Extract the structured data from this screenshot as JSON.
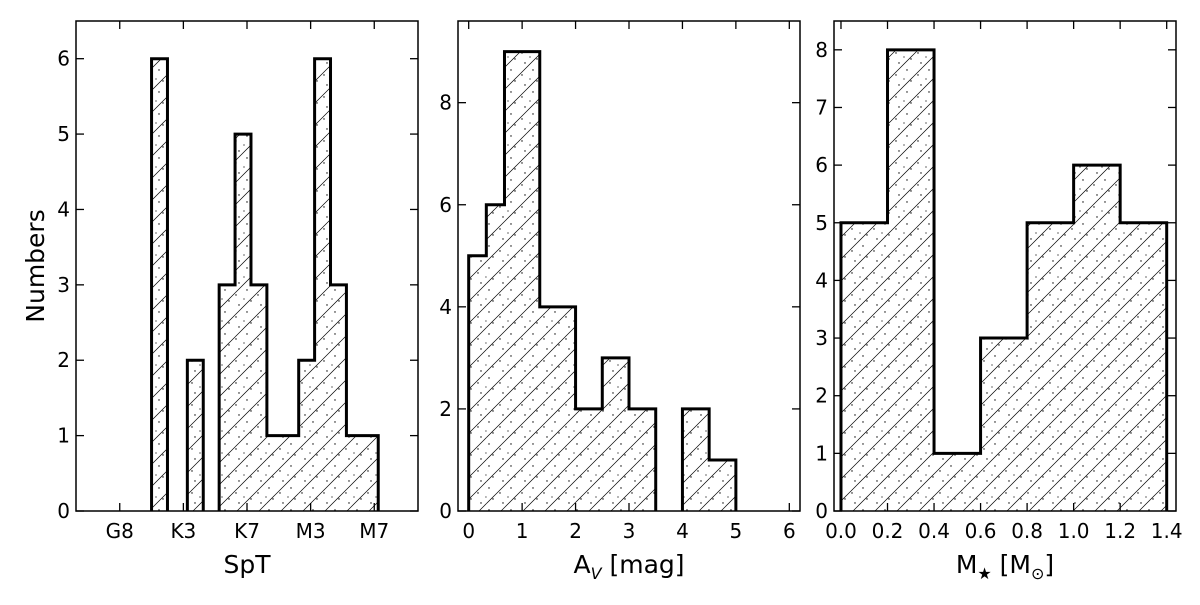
{
  "chart_data": [
    {
      "type": "bar",
      "subtype": "step-histogram",
      "xlabel": "SpT",
      "ylabel": "Numbers",
      "ylim": [
        0,
        6.5
      ],
      "y_ticks": [
        0,
        1,
        2,
        3,
        4,
        5,
        6
      ],
      "x_tick_labels": [
        "G8",
        "K3",
        "K7",
        "M3",
        "M7"
      ],
      "x_tick_positions": [
        0,
        4,
        8,
        12,
        16
      ],
      "xlim": [
        -2.75,
        18.75
      ],
      "bins": [
        {
          "x0": 2.0,
          "x1": 3.0,
          "value": 6
        },
        {
          "x0": 4.25,
          "x1": 5.25,
          "value": 2
        },
        {
          "x0": 6.25,
          "x1": 7.25,
          "value": 3
        },
        {
          "x0": 7.25,
          "x1": 8.25,
          "value": 5
        },
        {
          "x0": 8.25,
          "x1": 9.25,
          "value": 3
        },
        {
          "x0": 9.25,
          "x1": 11.25,
          "value": 1
        },
        {
          "x0": 11.25,
          "x1": 12.25,
          "value": 2
        },
        {
          "x0": 12.25,
          "x1": 13.25,
          "value": 6
        },
        {
          "x0": 13.25,
          "x1": 14.25,
          "value": 3
        },
        {
          "x0": 14.25,
          "x1": 16.25,
          "value": 1
        }
      ]
    },
    {
      "type": "bar",
      "subtype": "step-histogram",
      "xlabel": "A",
      "xlabel_sub": "V",
      "xlabel_suffix": " [mag]",
      "xlim": [
        -0.2,
        6.2
      ],
      "ylim": [
        0,
        9.6
      ],
      "x_ticks": [
        "0",
        "1",
        "2",
        "3",
        "4",
        "5",
        "6"
      ],
      "y_ticks": [
        "0",
        "2",
        "4",
        "6",
        "8"
      ],
      "bins": [
        {
          "x0": 0.0,
          "x1": 0.33,
          "value": 5
        },
        {
          "x0": 0.33,
          "x1": 0.67,
          "value": 6
        },
        {
          "x0": 0.67,
          "x1": 1.33,
          "value": 9
        },
        {
          "x0": 1.33,
          "x1": 2.0,
          "value": 4
        },
        {
          "x0": 2.0,
          "x1": 2.5,
          "value": 2
        },
        {
          "x0": 2.5,
          "x1": 3.0,
          "value": 3
        },
        {
          "x0": 3.0,
          "x1": 3.5,
          "value": 2
        },
        {
          "x0": 4.0,
          "x1": 4.5,
          "value": 2
        },
        {
          "x0": 4.5,
          "x1": 5.0,
          "value": 1
        }
      ]
    },
    {
      "type": "bar",
      "subtype": "step-histogram",
      "xlabel": "M",
      "xlabel_sub": "★",
      "xlabel_suffix": " [M",
      "xlabel_sub2": "⊙",
      "xlabel_end": "]",
      "xlim": [
        -0.03,
        1.44
      ],
      "ylim": [
        0,
        8.5
      ],
      "x_ticks": [
        "0.0",
        "0.2",
        "0.4",
        "0.6",
        "0.8",
        "1.0",
        "1.2",
        "1.4"
      ],
      "y_ticks": [
        "0",
        "1",
        "2",
        "3",
        "4",
        "5",
        "6",
        "7",
        "8"
      ],
      "bins": [
        {
          "x0": 0.0,
          "x1": 0.2,
          "value": 5
        },
        {
          "x0": 0.2,
          "x1": 0.4,
          "value": 8
        },
        {
          "x0": 0.4,
          "x1": 0.6,
          "value": 1
        },
        {
          "x0": 0.6,
          "x1": 0.8,
          "value": 3
        },
        {
          "x0": 0.8,
          "x1": 1.0,
          "value": 5
        },
        {
          "x0": 1.0,
          "x1": 1.2,
          "value": 6
        },
        {
          "x0": 1.2,
          "x1": 1.4,
          "value": 5
        }
      ]
    }
  ]
}
